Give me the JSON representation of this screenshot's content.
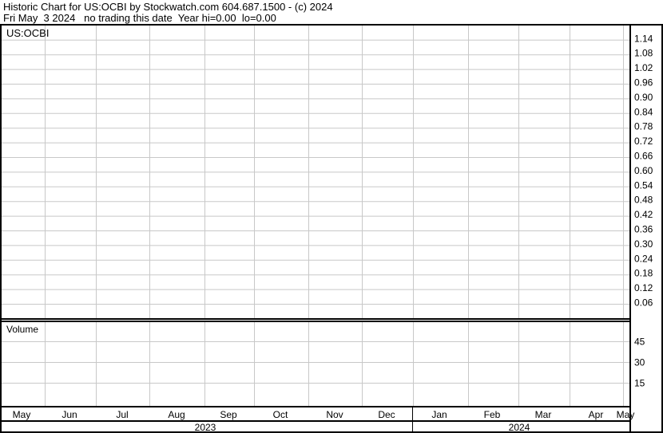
{
  "header": {
    "line1": "Historic Chart for US:OCBI by Stockwatch.com 604.687.1500 - (c) 2024",
    "line2": "Fri May  3 2024   no trading this date  Year hi=0.00  lo=0.00"
  },
  "chart_data": [
    {
      "type": "line",
      "title": "US:OCBI",
      "series": [],
      "y_ticks": [
        "1.14",
        "1.08",
        "1.02",
        "0.96",
        "0.90",
        "0.84",
        "0.78",
        "0.72",
        "0.66",
        "0.60",
        "0.54",
        "0.48",
        "0.42",
        "0.36",
        "0.30",
        "0.24",
        "0.18",
        "0.12",
        "0.06"
      ],
      "ylim": [
        0,
        1.2
      ],
      "grid": true
    },
    {
      "type": "bar",
      "title": "Volume",
      "series": [],
      "y_ticks": [
        "45",
        "30",
        "15"
      ],
      "ylim": [
        0,
        60
      ],
      "grid": true
    }
  ],
  "x_axis": {
    "months": [
      "May",
      "Jun",
      "Jul",
      "Aug",
      "Sep",
      "Oct",
      "Nov",
      "Dec",
      "Jan",
      "Feb",
      "Mar",
      "Apr",
      "May"
    ],
    "years": [
      "2023",
      "2024"
    ]
  },
  "colors": {
    "grid": "#c8c8c8",
    "axis": "#000000",
    "text": "#000000"
  }
}
